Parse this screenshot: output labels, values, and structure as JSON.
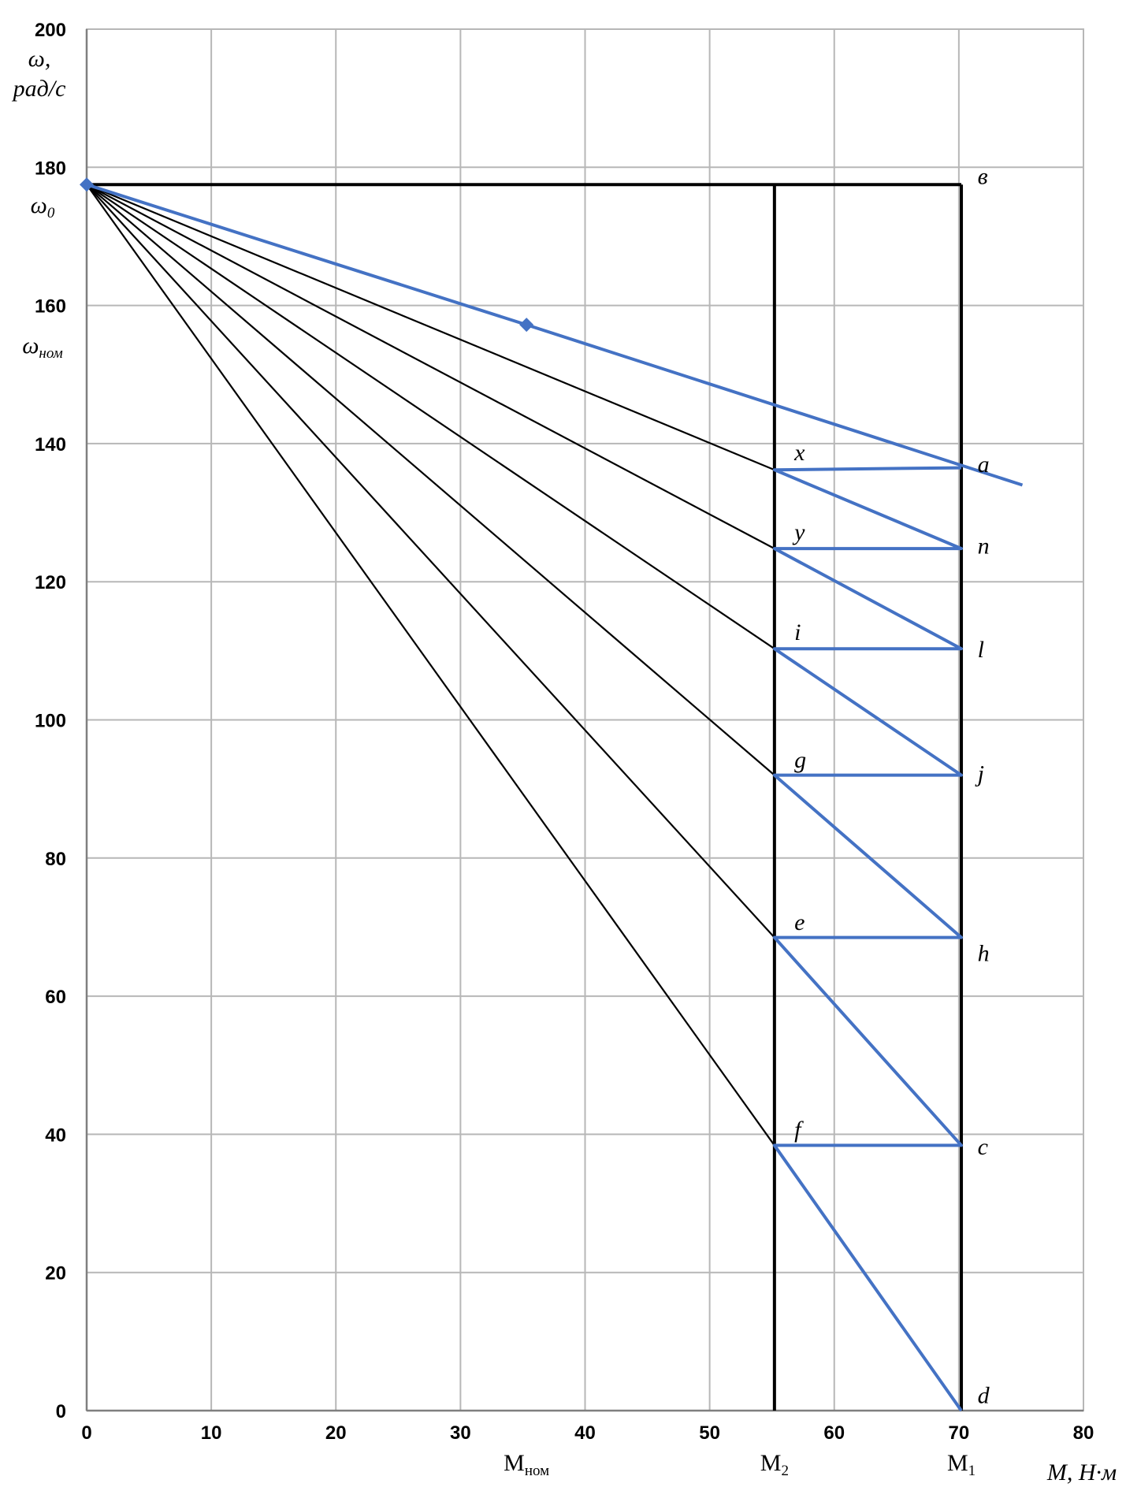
{
  "chart_data": {
    "type": "line",
    "xlabel": "M, Н·м",
    "ylabel": "ω, рад/с",
    "xlim": [
      0,
      80
    ],
    "ylim": [
      0,
      200
    ],
    "x_ticks": [
      0,
      10,
      20,
      30,
      40,
      50,
      60,
      70,
      80
    ],
    "y_ticks": [
      0,
      20,
      40,
      60,
      80,
      100,
      120,
      140,
      160,
      180,
      200
    ],
    "grid": true,
    "colors": {
      "natural": "#4472c4",
      "artificial": "#000000",
      "path": "#4472c4",
      "limits": "#000000"
    },
    "omega0": 177.5,
    "M2": 55.2,
    "M1": 70.2,
    "x_markers": [
      {
        "label": "M",
        "sub": "ном",
        "x": 35.3
      },
      {
        "label": "M",
        "sub": "2",
        "x": 55.2
      },
      {
        "label": "M",
        "sub": "1",
        "x": 70.2
      }
    ],
    "y_markers": [
      {
        "label": "ω",
        "sub": "0",
        "y": 177.5
      },
      {
        "label": "ω",
        "sub": "ном",
        "y": 157.2
      }
    ],
    "natural_characteristic": {
      "points": [
        [
          0,
          177.5
        ],
        [
          35.3,
          157.2
        ],
        [
          75.1,
          134.0
        ]
      ],
      "markers": [
        [
          0,
          177.5
        ],
        [
          35.3,
          157.2
        ]
      ]
    },
    "artificial_characteristics": [
      {
        "end": [
          55.2,
          136.2
        ]
      },
      {
        "end": [
          55.2,
          124.8
        ]
      },
      {
        "end": [
          55.2,
          110.3
        ]
      },
      {
        "end": [
          55.2,
          92.0
        ]
      },
      {
        "end": [
          55.2,
          68.5
        ]
      },
      {
        "end": [
          55.2,
          38.4
        ]
      }
    ],
    "top_line": {
      "from": [
        0,
        177.5
      ],
      "to": [
        70.2,
        177.5
      ]
    },
    "limit_lines": [
      {
        "x": 55.2,
        "from": 0,
        "to": 177.5
      },
      {
        "x": 70.2,
        "from": 0,
        "to": 177.5
      }
    ],
    "switch_path": [
      [
        70.2,
        136.5
      ],
      [
        55.2,
        136.2
      ],
      [
        70.2,
        124.8
      ],
      [
        55.2,
        124.8
      ],
      [
        70.2,
        110.3
      ],
      [
        55.2,
        110.3
      ],
      [
        70.2,
        92.0
      ],
      [
        55.2,
        92.0
      ],
      [
        70.2,
        68.5
      ],
      [
        55.2,
        68.5
      ],
      [
        70.2,
        38.4
      ],
      [
        55.2,
        38.4
      ],
      [
        70.2,
        0
      ]
    ],
    "point_labels": [
      {
        "text": "в",
        "x": 71.5,
        "y": 178.5
      },
      {
        "text": "a",
        "x": 71.5,
        "y": 136.8
      },
      {
        "text": "n",
        "x": 71.5,
        "y": 125.0
      },
      {
        "text": "l",
        "x": 71.5,
        "y": 110.0
      },
      {
        "text": "j",
        "x": 71.5,
        "y": 92.0
      },
      {
        "text": "h",
        "x": 71.5,
        "y": 66.0
      },
      {
        "text": "c",
        "x": 71.5,
        "y": 38.0
      },
      {
        "text": "d",
        "x": 71.5,
        "y": 2.0
      },
      {
        "text": "x",
        "x": 56.8,
        "y": 138.5
      },
      {
        "text": "y",
        "x": 56.8,
        "y": 127.0
      },
      {
        "text": "i",
        "x": 56.8,
        "y": 112.5
      },
      {
        "text": "g",
        "x": 56.8,
        "y": 94.0
      },
      {
        "text": "e",
        "x": 56.8,
        "y": 70.5
      },
      {
        "text": "f",
        "x": 56.8,
        "y": 40.5
      }
    ]
  }
}
